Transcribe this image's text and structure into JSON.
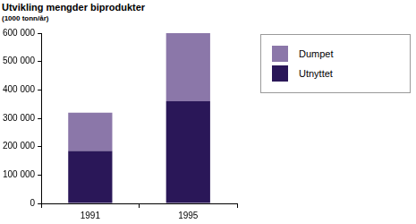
{
  "chart_data": {
    "type": "bar",
    "title": "Utvikling mengder biprodukter",
    "subtitle": "(1000 tonn/år)",
    "categories": [
      "1991",
      "1995"
    ],
    "series": [
      {
        "name": "Utnyttet",
        "color": "#2a1758",
        "values": [
          185000,
          360000
        ]
      },
      {
        "name": "Dumpet",
        "color": "#8b77a9",
        "values": [
          135000,
          240000
        ]
      }
    ],
    "stacked": true,
    "ylim": [
      0,
      600000
    ],
    "yticks": [
      0,
      {
        "value": 100000,
        "label": "100 000"
      },
      {
        "value": 200000,
        "label": "200 000"
      },
      {
        "value": 300000,
        "label": "300 000"
      },
      {
        "value": 400000,
        "label": "400 000"
      },
      {
        "value": 500000,
        "label": "500 000"
      },
      {
        "value": 600000,
        "label": "600 000"
      }
    ],
    "grid": false,
    "legend": "upper right"
  }
}
